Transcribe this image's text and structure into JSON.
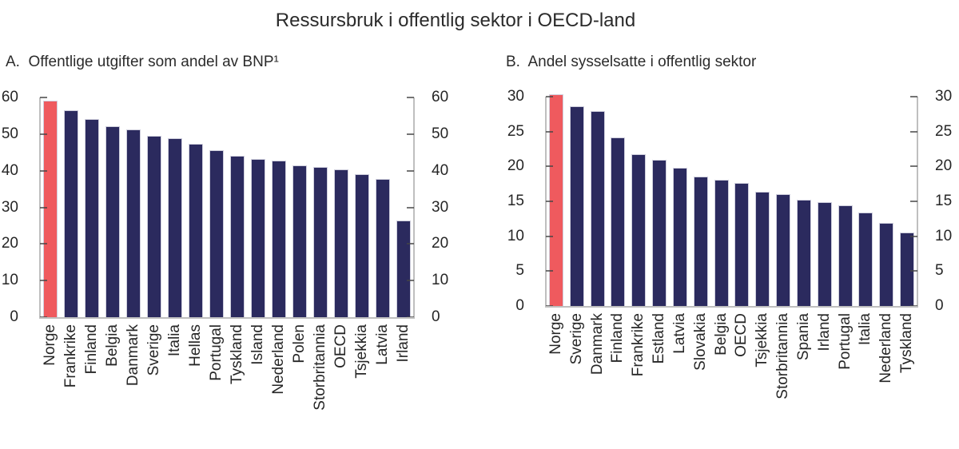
{
  "title": "Ressursbruk i offentlig sektor i OECD-land",
  "colors": {
    "highlight_bar": "#ef5a5e",
    "default_bar": "#2b2a5e",
    "bar_edge": "#cfcfdd",
    "axis_line": "#bfbfbf",
    "tick_mark": "#464646",
    "text": "#262626"
  },
  "chart_data": [
    {
      "type": "bar",
      "panel": "A",
      "title": "A.  Offentlige utgifter som andel av BNP¹",
      "categories": [
        "Norge",
        "Frankrike",
        "Finland",
        "Belgia",
        "Danmark",
        "Sverige",
        "Italia",
        "Hellas",
        "Portugal",
        "Tyskland",
        "Island",
        "Nederland",
        "Polen",
        "Storbritannia",
        "OECD",
        "Tsjekkia",
        "Latvia",
        "Irland"
      ],
      "values": [
        59.2,
        56.5,
        54.2,
        52.1,
        51.2,
        49.6,
        48.9,
        47.3,
        45.7,
        44.0,
        43.3,
        42.7,
        41.4,
        41.1,
        40.4,
        39.0,
        37.8,
        26.3
      ],
      "highlight_category": "Norge",
      "xlabel": "",
      "ylabel": "",
      "ylim": [
        0,
        60
      ],
      "yticks": [
        0,
        10,
        20,
        30,
        40,
        50,
        60
      ],
      "dual_y_axis": true,
      "grid": false,
      "legend": "none"
    },
    {
      "type": "bar",
      "panel": "B",
      "title": "B.  Andel sysselsatte i offentlig sektor",
      "categories": [
        "Norge",
        "Sverige",
        "Danmark",
        "Finland",
        "Frankrike",
        "Estland",
        "Latvia",
        "Slovakia",
        "Belgia",
        "OECD",
        "Tsjekkia",
        "Storbritannia",
        "Spania",
        "Irland",
        "Portugal",
        "Italia",
        "Nederland",
        "Tyskland"
      ],
      "values": [
        30.3,
        28.6,
        27.9,
        24.2,
        21.8,
        20.9,
        19.8,
        18.6,
        18.1,
        17.6,
        16.4,
        16.0,
        15.2,
        14.9,
        14.4,
        13.4,
        11.9,
        10.5
      ],
      "highlight_category": "Norge",
      "xlabel": "",
      "ylabel": "",
      "ylim": [
        0,
        30
      ],
      "yticks": [
        0,
        5,
        10,
        15,
        20,
        25,
        30
      ],
      "dual_y_axis": true,
      "grid": false,
      "legend": "none"
    }
  ]
}
